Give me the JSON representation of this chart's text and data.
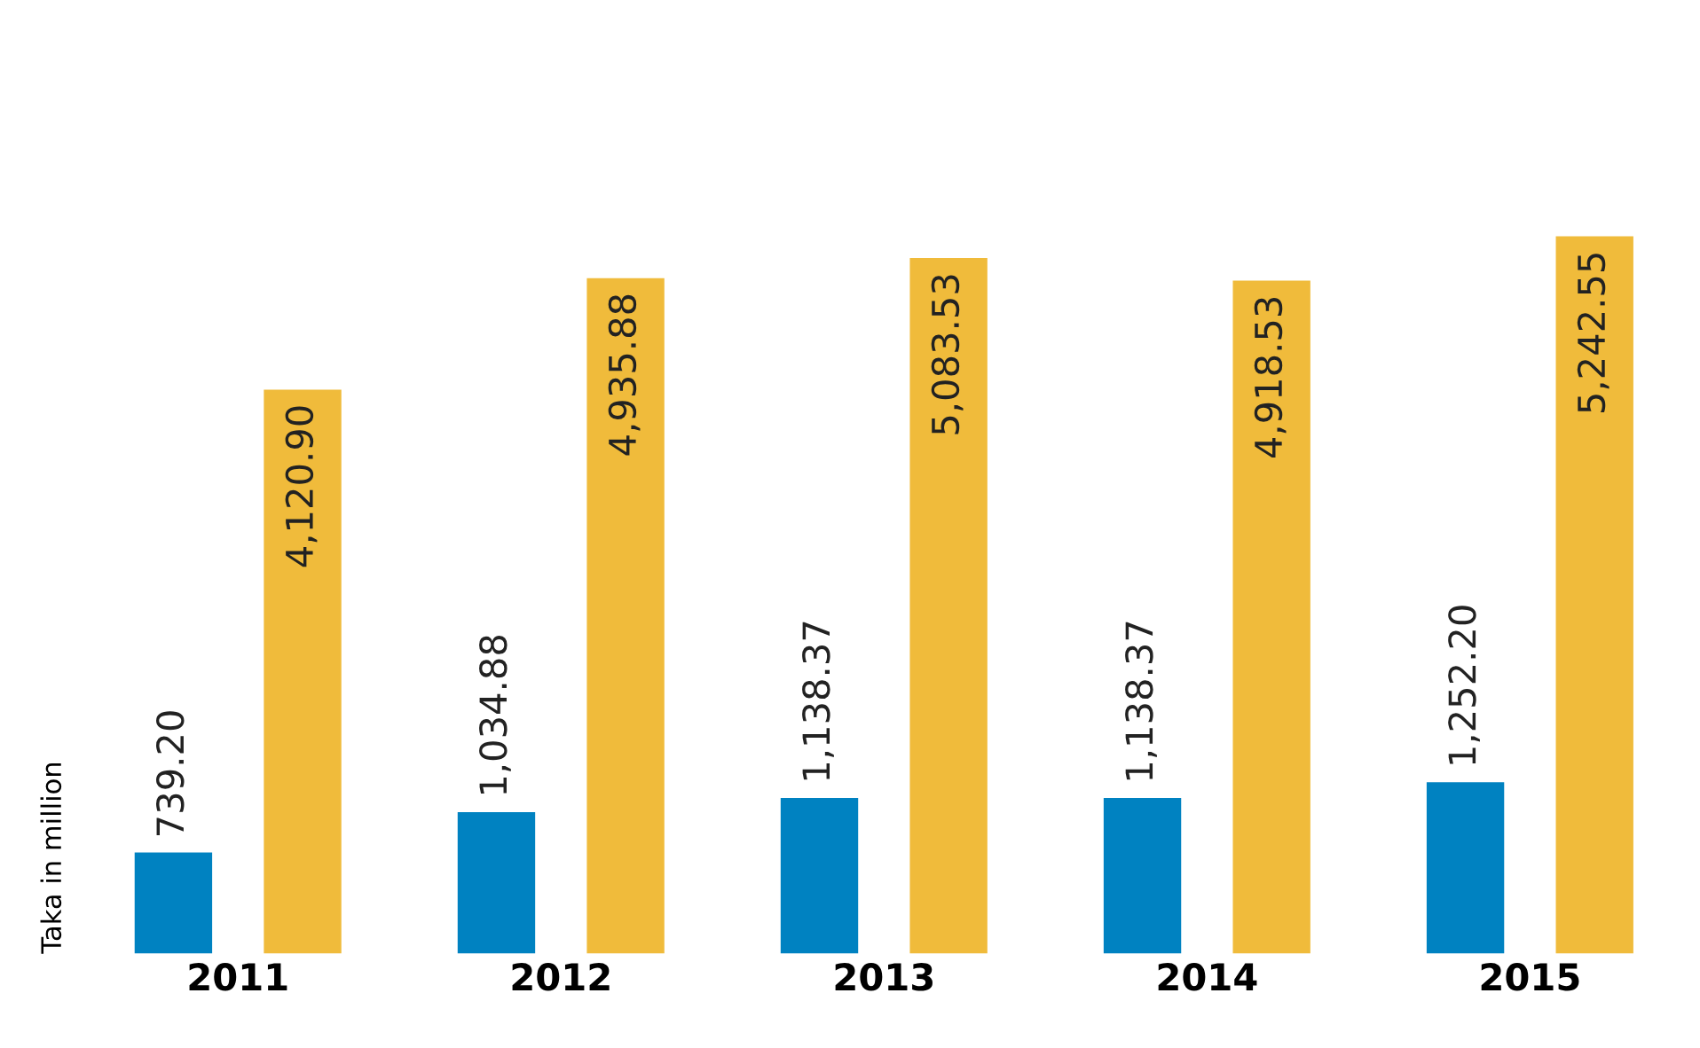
{
  "chart_data": {
    "type": "bar",
    "ylabel": "Taka in million",
    "categories": [
      "2011",
      "2012",
      "2013",
      "2014",
      "2015"
    ],
    "series": [
      {
        "color": "#0082c1",
        "values": [
          739.2,
          1034.88,
          1138.37,
          1138.37,
          1252.2
        ],
        "value_labels": [
          "739.20",
          "1,034.88",
          "1,138.37",
          "1,138.37",
          "1,252.20"
        ]
      },
      {
        "color": "#f0bb3b",
        "values": [
          4120.9,
          4935.88,
          5083.53,
          4918.53,
          5242.55
        ],
        "value_labels": [
          "4,120.90",
          "4,935.88",
          "5,083.53",
          "4,918.53",
          "5,242.55"
        ]
      }
    ]
  }
}
